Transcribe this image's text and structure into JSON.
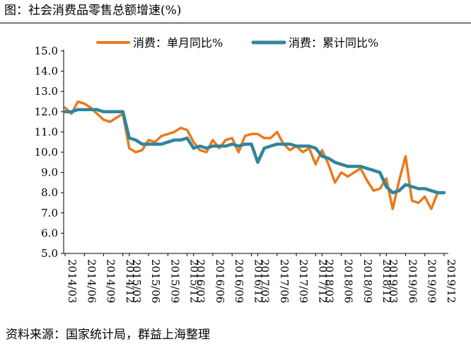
{
  "title": "图：社会消费品零售总额增速(%)",
  "source": "资料来源：国家统计局，群益上海整理",
  "chart_data": {
    "type": "line",
    "title": "图：社会消费品零售总额增速(%)",
    "xlabel": "",
    "ylabel": "",
    "ylim": [
      5.0,
      15.0
    ],
    "yticks": [
      "5.0",
      "6.0",
      "7.0",
      "8.0",
      "9.0",
      "10.0",
      "11.0",
      "12.0",
      "13.0",
      "14.0",
      "15.0"
    ],
    "xticks": [
      "2014/03",
      "2014/06",
      "2014/09",
      "2014/12",
      "2015/03",
      "2015/06",
      "2015/09",
      "2015/12",
      "2016/03",
      "2016/06",
      "2016/09",
      "2016/12",
      "2017/03",
      "2017/06",
      "2017/09",
      "2017/12",
      "2018/03",
      "2018/06",
      "2018/09",
      "2018/12",
      "2019/03",
      "2019/06",
      "2019/09",
      "2019/12"
    ],
    "x": [
      "2014/03",
      "2014/04",
      "2014/05",
      "2014/06",
      "2014/07",
      "2014/08",
      "2014/09",
      "2014/10",
      "2014/11",
      "2014/12",
      "2015/03",
      "2015/04",
      "2015/05",
      "2015/06",
      "2015/07",
      "2015/08",
      "2015/09",
      "2015/10",
      "2015/11",
      "2015/12",
      "2016/03",
      "2016/04",
      "2016/05",
      "2016/06",
      "2016/07",
      "2016/08",
      "2016/09",
      "2016/10",
      "2016/11",
      "2016/12",
      "2017/03",
      "2017/04",
      "2017/05",
      "2017/06",
      "2017/07",
      "2017/08",
      "2017/09",
      "2017/10",
      "2017/11",
      "2017/12",
      "2018/03",
      "2018/04",
      "2018/05",
      "2018/06",
      "2018/07",
      "2018/08",
      "2018/09",
      "2018/10",
      "2018/11",
      "2018/12",
      "2019/03",
      "2019/04",
      "2019/05",
      "2019/06",
      "2019/07",
      "2019/08",
      "2019/09",
      "2019/10",
      "2019/11",
      "2019/12"
    ],
    "series": [
      {
        "name": "消费：单月同比%",
        "color": "#E97A1E",
        "values": [
          12.2,
          11.9,
          12.5,
          12.4,
          12.2,
          11.9,
          11.6,
          11.5,
          11.7,
          11.9,
          10.2,
          10.0,
          10.1,
          10.6,
          10.5,
          10.8,
          10.9,
          11.0,
          11.2,
          11.1,
          10.5,
          10.1,
          10.0,
          10.6,
          10.2,
          10.6,
          10.7,
          10.0,
          10.8,
          10.9,
          10.9,
          10.7,
          10.7,
          11.0,
          10.4,
          10.1,
          10.3,
          10.0,
          10.2,
          9.4,
          10.1,
          9.4,
          8.5,
          9.0,
          8.8,
          9.0,
          9.2,
          8.6,
          8.1,
          8.2,
          8.7,
          7.2,
          8.6,
          9.8,
          7.6,
          7.5,
          7.8,
          7.2,
          8.0,
          8.0
        ]
      },
      {
        "name": "消费：累计同比%",
        "color": "#31859C",
        "values": [
          12.0,
          12.0,
          12.1,
          12.1,
          12.1,
          12.1,
          12.0,
          12.0,
          12.0,
          12.0,
          10.7,
          10.6,
          10.4,
          10.4,
          10.4,
          10.4,
          10.5,
          10.6,
          10.6,
          10.7,
          10.2,
          10.3,
          10.2,
          10.3,
          10.3,
          10.3,
          10.4,
          10.3,
          10.4,
          10.4,
          9.5,
          10.2,
          10.3,
          10.4,
          10.4,
          10.4,
          10.3,
          10.3,
          10.3,
          10.2,
          9.8,
          9.7,
          9.5,
          9.4,
          9.3,
          9.3,
          9.3,
          9.2,
          9.1,
          9.0,
          8.3,
          8.0,
          8.1,
          8.4,
          8.3,
          8.2,
          8.2,
          8.1,
          8.0,
          8.0
        ]
      }
    ],
    "legend_position": "top",
    "grid": false
  }
}
